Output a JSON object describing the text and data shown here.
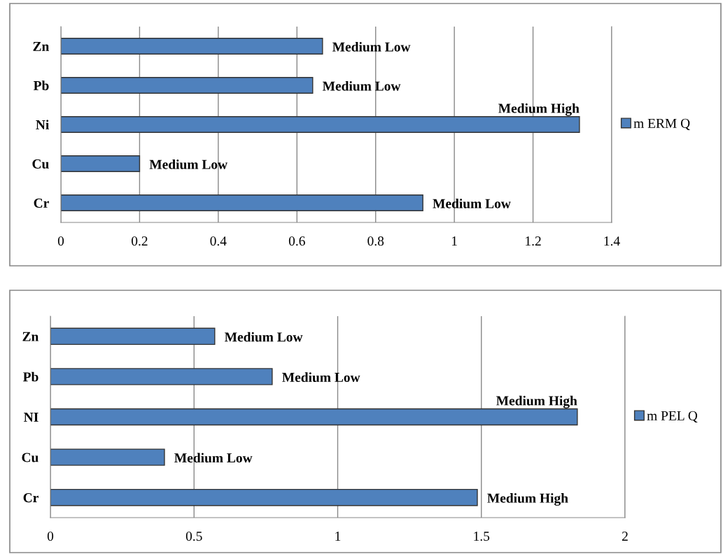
{
  "chart_data": [
    {
      "type": "bar",
      "orientation": "horizontal",
      "categories": [
        "Zn",
        "Pb",
        "Ni",
        "Cu",
        "Cr"
      ],
      "series": [
        {
          "name": "m ERM Q",
          "color": "#4f81bd",
          "values": [
            0.665,
            0.64,
            1.318,
            0.2,
            0.92
          ],
          "value_labels": [
            "Medium Low",
            "Medium Low",
            "Medium High",
            "Medium Low",
            "Medium Low"
          ]
        }
      ],
      "xlim": [
        0,
        1.4
      ],
      "xticks": [
        0,
        0.2,
        0.4,
        0.6,
        0.8,
        1,
        1.2,
        1.4
      ],
      "grid": "x",
      "legend": "right"
    },
    {
      "type": "bar",
      "orientation": "horizontal",
      "categories": [
        "Zn",
        "Pb",
        "NI",
        "Cu",
        "Cr"
      ],
      "series": [
        {
          "name": "m PEL Q",
          "color": "#4f81bd",
          "values": [
            0.572,
            0.772,
            1.834,
            0.397,
            1.486
          ],
          "value_labels": [
            "Medium Low",
            "Medium Low",
            "Medium High",
            "Medium Low",
            "Medium High"
          ]
        }
      ],
      "xlim": [
        0,
        2
      ],
      "xticks": [
        0,
        0.5,
        1,
        1.5,
        2
      ],
      "grid": "x",
      "legend": "right"
    }
  ]
}
